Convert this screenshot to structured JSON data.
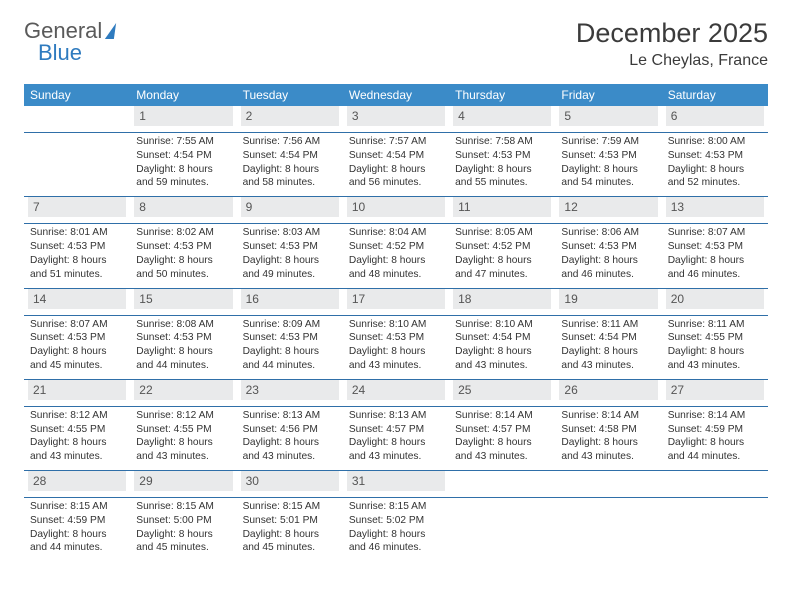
{
  "brand": {
    "part1": "General",
    "part2": "Blue"
  },
  "title": "December 2025",
  "location": "Le Cheylas, France",
  "colors": {
    "header_bg": "#3b8bc8",
    "header_text": "#ffffff",
    "daynum_bg": "#e9eaeb",
    "rule": "#2f6fa8",
    "body_text": "#333333",
    "logo_blue": "#2f7bbf"
  },
  "weekdays": [
    "Sunday",
    "Monday",
    "Tuesday",
    "Wednesday",
    "Thursday",
    "Friday",
    "Saturday"
  ],
  "weeks": [
    [
      {
        "n": "",
        "sr": "",
        "ss": "",
        "dl": "",
        "empty": true
      },
      {
        "n": "1",
        "sr": "Sunrise: 7:55 AM",
        "ss": "Sunset: 4:54 PM",
        "dl": "Daylight: 8 hours and 59 minutes."
      },
      {
        "n": "2",
        "sr": "Sunrise: 7:56 AM",
        "ss": "Sunset: 4:54 PM",
        "dl": "Daylight: 8 hours and 58 minutes."
      },
      {
        "n": "3",
        "sr": "Sunrise: 7:57 AM",
        "ss": "Sunset: 4:54 PM",
        "dl": "Daylight: 8 hours and 56 minutes."
      },
      {
        "n": "4",
        "sr": "Sunrise: 7:58 AM",
        "ss": "Sunset: 4:53 PM",
        "dl": "Daylight: 8 hours and 55 minutes."
      },
      {
        "n": "5",
        "sr": "Sunrise: 7:59 AM",
        "ss": "Sunset: 4:53 PM",
        "dl": "Daylight: 8 hours and 54 minutes."
      },
      {
        "n": "6",
        "sr": "Sunrise: 8:00 AM",
        "ss": "Sunset: 4:53 PM",
        "dl": "Daylight: 8 hours and 52 minutes."
      }
    ],
    [
      {
        "n": "7",
        "sr": "Sunrise: 8:01 AM",
        "ss": "Sunset: 4:53 PM",
        "dl": "Daylight: 8 hours and 51 minutes."
      },
      {
        "n": "8",
        "sr": "Sunrise: 8:02 AM",
        "ss": "Sunset: 4:53 PM",
        "dl": "Daylight: 8 hours and 50 minutes."
      },
      {
        "n": "9",
        "sr": "Sunrise: 8:03 AM",
        "ss": "Sunset: 4:53 PM",
        "dl": "Daylight: 8 hours and 49 minutes."
      },
      {
        "n": "10",
        "sr": "Sunrise: 8:04 AM",
        "ss": "Sunset: 4:52 PM",
        "dl": "Daylight: 8 hours and 48 minutes."
      },
      {
        "n": "11",
        "sr": "Sunrise: 8:05 AM",
        "ss": "Sunset: 4:52 PM",
        "dl": "Daylight: 8 hours and 47 minutes."
      },
      {
        "n": "12",
        "sr": "Sunrise: 8:06 AM",
        "ss": "Sunset: 4:53 PM",
        "dl": "Daylight: 8 hours and 46 minutes."
      },
      {
        "n": "13",
        "sr": "Sunrise: 8:07 AM",
        "ss": "Sunset: 4:53 PM",
        "dl": "Daylight: 8 hours and 46 minutes."
      }
    ],
    [
      {
        "n": "14",
        "sr": "Sunrise: 8:07 AM",
        "ss": "Sunset: 4:53 PM",
        "dl": "Daylight: 8 hours and 45 minutes."
      },
      {
        "n": "15",
        "sr": "Sunrise: 8:08 AM",
        "ss": "Sunset: 4:53 PM",
        "dl": "Daylight: 8 hours and 44 minutes."
      },
      {
        "n": "16",
        "sr": "Sunrise: 8:09 AM",
        "ss": "Sunset: 4:53 PM",
        "dl": "Daylight: 8 hours and 44 minutes."
      },
      {
        "n": "17",
        "sr": "Sunrise: 8:10 AM",
        "ss": "Sunset: 4:53 PM",
        "dl": "Daylight: 8 hours and 43 minutes."
      },
      {
        "n": "18",
        "sr": "Sunrise: 8:10 AM",
        "ss": "Sunset: 4:54 PM",
        "dl": "Daylight: 8 hours and 43 minutes."
      },
      {
        "n": "19",
        "sr": "Sunrise: 8:11 AM",
        "ss": "Sunset: 4:54 PM",
        "dl": "Daylight: 8 hours and 43 minutes."
      },
      {
        "n": "20",
        "sr": "Sunrise: 8:11 AM",
        "ss": "Sunset: 4:55 PM",
        "dl": "Daylight: 8 hours and 43 minutes."
      }
    ],
    [
      {
        "n": "21",
        "sr": "Sunrise: 8:12 AM",
        "ss": "Sunset: 4:55 PM",
        "dl": "Daylight: 8 hours and 43 minutes."
      },
      {
        "n": "22",
        "sr": "Sunrise: 8:12 AM",
        "ss": "Sunset: 4:55 PM",
        "dl": "Daylight: 8 hours and 43 minutes."
      },
      {
        "n": "23",
        "sr": "Sunrise: 8:13 AM",
        "ss": "Sunset: 4:56 PM",
        "dl": "Daylight: 8 hours and 43 minutes."
      },
      {
        "n": "24",
        "sr": "Sunrise: 8:13 AM",
        "ss": "Sunset: 4:57 PM",
        "dl": "Daylight: 8 hours and 43 minutes."
      },
      {
        "n": "25",
        "sr": "Sunrise: 8:14 AM",
        "ss": "Sunset: 4:57 PM",
        "dl": "Daylight: 8 hours and 43 minutes."
      },
      {
        "n": "26",
        "sr": "Sunrise: 8:14 AM",
        "ss": "Sunset: 4:58 PM",
        "dl": "Daylight: 8 hours and 43 minutes."
      },
      {
        "n": "27",
        "sr": "Sunrise: 8:14 AM",
        "ss": "Sunset: 4:59 PM",
        "dl": "Daylight: 8 hours and 44 minutes."
      }
    ],
    [
      {
        "n": "28",
        "sr": "Sunrise: 8:15 AM",
        "ss": "Sunset: 4:59 PM",
        "dl": "Daylight: 8 hours and 44 minutes."
      },
      {
        "n": "29",
        "sr": "Sunrise: 8:15 AM",
        "ss": "Sunset: 5:00 PM",
        "dl": "Daylight: 8 hours and 45 minutes."
      },
      {
        "n": "30",
        "sr": "Sunrise: 8:15 AM",
        "ss": "Sunset: 5:01 PM",
        "dl": "Daylight: 8 hours and 45 minutes."
      },
      {
        "n": "31",
        "sr": "Sunrise: 8:15 AM",
        "ss": "Sunset: 5:02 PM",
        "dl": "Daylight: 8 hours and 46 minutes."
      },
      {
        "n": "",
        "sr": "",
        "ss": "",
        "dl": "",
        "empty": true
      },
      {
        "n": "",
        "sr": "",
        "ss": "",
        "dl": "",
        "empty": true
      },
      {
        "n": "",
        "sr": "",
        "ss": "",
        "dl": "",
        "empty": true
      }
    ]
  ]
}
